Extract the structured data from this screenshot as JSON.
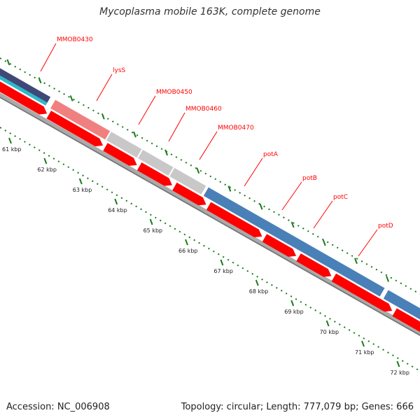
{
  "header": {
    "title": "Mycoplasma mobile 163K, complete genome"
  },
  "footer": {
    "accession": "Accession: NC_006908",
    "summary": "Topology: circular; Length: 777,079 bp; Genes: 666"
  },
  "colors": {
    "gene_label": "#ff0000",
    "cds": "#ff0000",
    "tick": "#1a7a1a",
    "backbone": "#888888",
    "feature_pink": "#f08080",
    "feature_grey": "#c8c8c8",
    "feature_blue": "#4a80b8",
    "feature_teal": "#30b8c8",
    "feature_navy": "#404878"
  },
  "genes": [
    {
      "name": "MMOB0430",
      "type": "pink"
    },
    {
      "name": "lysS",
      "type": "pink"
    },
    {
      "name": "MMOB0450",
      "type": "grey"
    },
    {
      "name": "MMOB0460",
      "type": "grey"
    },
    {
      "name": "MMOB0470",
      "type": "grey"
    },
    {
      "name": "potA",
      "type": "blue"
    },
    {
      "name": "potB",
      "type": "blue"
    },
    {
      "name": "potC",
      "type": "blue"
    },
    {
      "name": "potD",
      "type": "blue"
    }
  ],
  "kbp_labels": [
    "61 kbp",
    "62 kbp",
    "63 kbp",
    "64 kbp",
    "65 kbp",
    "66 kbp",
    "67 kbp",
    "68 kbp",
    "69 kbp",
    "70 kbp",
    "71 kbp",
    "72 kbp"
  ]
}
